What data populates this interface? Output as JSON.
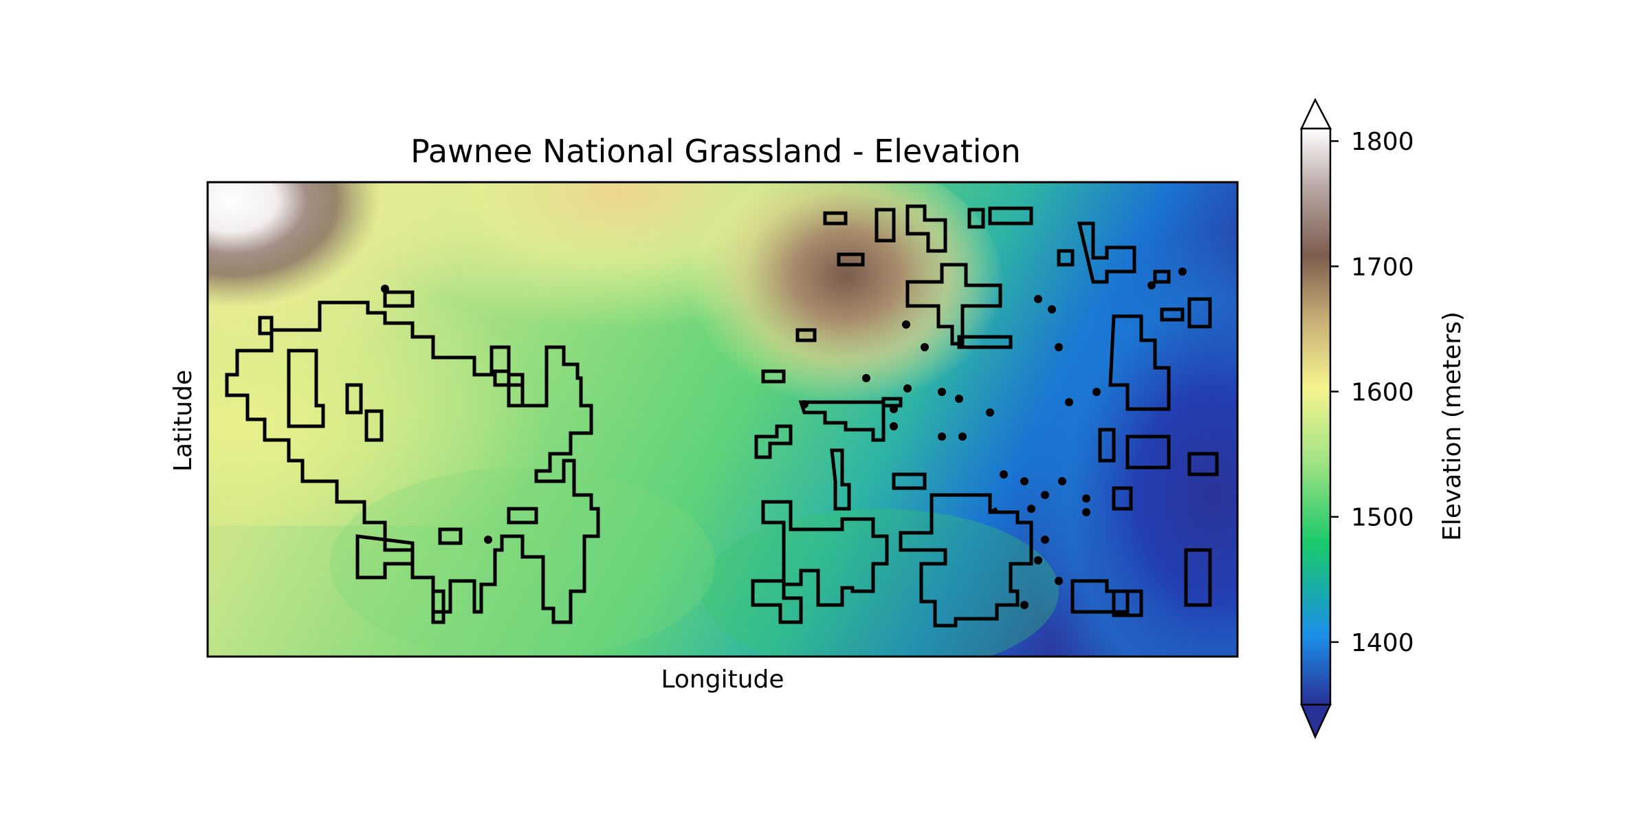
{
  "figure": {
    "title": "Pawnee National Grassland - Elevation",
    "xlabel": "Longitude",
    "ylabel": "Latitude"
  },
  "colorbar": {
    "label": "Elevation (meters)",
    "ticks": [
      {
        "value": 1800,
        "label": "1800"
      },
      {
        "value": 1700,
        "label": "1700"
      },
      {
        "value": 1600,
        "label": "1600"
      },
      {
        "value": 1500,
        "label": "1500"
      },
      {
        "value": 1400,
        "label": "1400"
      }
    ],
    "range": [
      1350,
      1810
    ],
    "extend": "both",
    "colormap": "terrain",
    "colors": [
      "#2a3196",
      "#1b8fe8",
      "#19c96a",
      "#9fe284",
      "#f6f48f",
      "#c6ad76",
      "#7c5d4e",
      "#b9a9a6",
      "#ffffff"
    ]
  },
  "map": {
    "field": "elevation",
    "units": "meters",
    "overlay": "grassland boundary outlines (black)",
    "overlay_color": "#000000"
  }
}
